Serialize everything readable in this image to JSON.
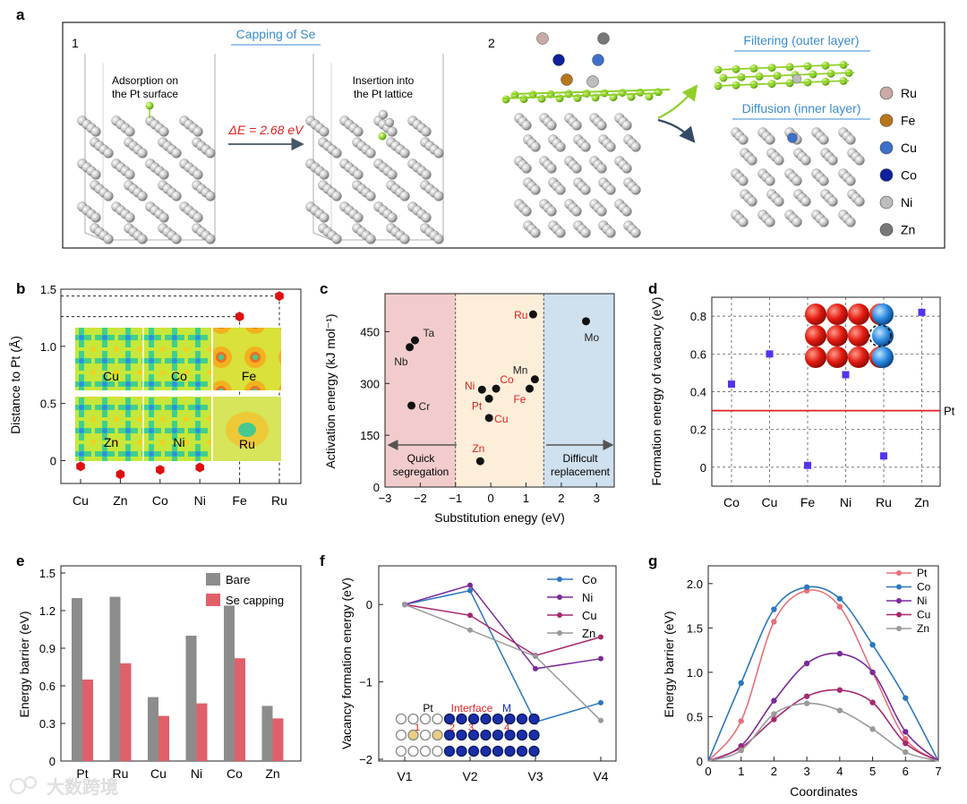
{
  "panel_letters": {
    "a": "a",
    "b": "b",
    "c": "c",
    "d": "d",
    "e": "e",
    "f": "f",
    "g": "g"
  },
  "panel_a": {
    "sub1": "1",
    "sub2": "2",
    "capping_title": "Capping of Se",
    "adsorption_line1": "Adsorption on",
    "adsorption_line2": "the Pt surface",
    "insertion_line1": "Insertion into",
    "insertion_line2": "the Pt lattice",
    "delta_e": "ΔE = 2.68 eV",
    "filtering": "Filtering (outer layer)",
    "diffusion": "Diffusion (inner layer)",
    "legend": [
      {
        "label": "Ru",
        "color": "#c9aaa6"
      },
      {
        "label": "Fe",
        "color": "#b8761a"
      },
      {
        "label": "Cu",
        "color": "#3f6fc8"
      },
      {
        "label": "Co",
        "color": "#10209a"
      },
      {
        "label": "Ni",
        "color": "#bdbdbd"
      },
      {
        "label": "Zn",
        "color": "#777777"
      }
    ]
  },
  "colors": {
    "accent_blue": "#3a8bd0",
    "accent_red": "#e02020",
    "bare_gray": "#8c8c8c",
    "se_capping": "#e0606a"
  },
  "chart_data": [
    {
      "panel": "b",
      "type": "scatter",
      "ylabel": "Distance to Pt (Å)",
      "categories": [
        "Cu",
        "Zn",
        "Co",
        "Ni",
        "Fe",
        "Ru"
      ],
      "yticks": [
        "0",
        "0.5",
        "1.0",
        "1.5"
      ],
      "ylim": [
        -0.2,
        1.5
      ],
      "values": [
        -0.05,
        -0.12,
        -0.08,
        -0.06,
        1.26,
        1.44
      ],
      "map_labels": [
        "Cu",
        "Co",
        "Fe",
        "Zn",
        "Ni",
        "Ru"
      ]
    },
    {
      "panel": "c",
      "type": "scatter",
      "xlabel": "Substitution enegy (eV)",
      "ylabel": "Activation energy (kJ mol⁻¹)",
      "xlim": [
        -3,
        3.5
      ],
      "ylim": [
        0,
        560
      ],
      "xticks": [
        "−3",
        "−2",
        "−1",
        "0",
        "1",
        "2",
        "3"
      ],
      "yticks": [
        "0",
        "150",
        "300",
        "450"
      ],
      "regions": [
        {
          "label_line1": "Quick",
          "label_line2": "segregation",
          "x0": -3,
          "x1": -1,
          "color": "#f2cccc"
        },
        {
          "label_line1": "",
          "label_line2": "",
          "x0": -1,
          "x1": 1.5,
          "color": "#fdeeda"
        },
        {
          "label_line1": "Difficult",
          "label_line2": "replacement",
          "x0": 1.5,
          "x1": 3.5,
          "color": "#cfe0ee"
        }
      ],
      "points": [
        {
          "label": "Ta",
          "x": -2.15,
          "y": 425,
          "color": "#222222"
        },
        {
          "label": "Nb",
          "x": -2.3,
          "y": 405,
          "color": "#222222"
        },
        {
          "label": "Cr",
          "x": -2.25,
          "y": 236,
          "color": "#222222"
        },
        {
          "label": "Ru",
          "x": 1.2,
          "y": 500,
          "color": "#e02020"
        },
        {
          "label": "Mo",
          "x": 2.7,
          "y": 480,
          "color": "#222222"
        },
        {
          "label": "Mn",
          "x": 1.25,
          "y": 312,
          "color": "#222222"
        },
        {
          "label": "Fe",
          "x": 1.1,
          "y": 285,
          "color": "#e02020"
        },
        {
          "label": "Co",
          "x": 0.15,
          "y": 285,
          "color": "#e02020"
        },
        {
          "label": "Ni",
          "x": -0.25,
          "y": 282,
          "color": "#e02020"
        },
        {
          "label": "Pt",
          "x": -0.05,
          "y": 256,
          "color": "#e02020"
        },
        {
          "label": "Cu",
          "x": -0.05,
          "y": 200,
          "color": "#e02020"
        },
        {
          "label": "Zn",
          "x": -0.3,
          "y": 75,
          "color": "#e02020"
        }
      ]
    },
    {
      "panel": "d",
      "type": "scatter",
      "ylabel": "Formation energy of vacancy (eV)",
      "categories": [
        "Co",
        "Cu",
        "Fe",
        "Ni",
        "Ru",
        "Zn"
      ],
      "yticks": [
        "0",
        "0.2",
        "0.4",
        "0.6",
        "0.8"
      ],
      "ylim": [
        -0.1,
        0.9
      ],
      "values": [
        0.44,
        0.6,
        0.01,
        0.49,
        0.06,
        0.82
      ],
      "x_offsets": [
        0,
        0,
        0,
        0,
        0,
        0
      ],
      "reference": {
        "label": "Pt",
        "y": 0.3,
        "color": "#e02020"
      },
      "marker_color": "#5533ee"
    },
    {
      "panel": "e",
      "type": "bar",
      "ylabel": "Energy barrier (eV)",
      "categories": [
        "Pt",
        "Ru",
        "Cu",
        "Ni",
        "Co",
        "Zn"
      ],
      "yticks": [
        "0",
        "0.3",
        "0.6",
        "0.9",
        "1.2",
        "1.5"
      ],
      "ylim": [
        0,
        1.5
      ],
      "series": [
        {
          "name": "Bare",
          "color": "#8c8c8c",
          "values": [
            1.3,
            1.31,
            0.51,
            1.0,
            1.24,
            0.44
          ]
        },
        {
          "name": "Se capping",
          "color": "#e0606a",
          "values": [
            0.65,
            0.78,
            0.36,
            0.46,
            0.82,
            0.34
          ]
        }
      ]
    },
    {
      "panel": "f",
      "type": "line",
      "ylabel": "Vacancy formation energy (eV)",
      "categories": [
        "V1",
        "V2",
        "V3",
        "V4"
      ],
      "yticks": [
        "−2",
        "−1",
        "0"
      ],
      "ylim": [
        -2,
        0.5
      ],
      "series": [
        {
          "name": "Co",
          "color": "#2a78c0",
          "values": [
            0,
            0.18,
            -1.52,
            -1.27
          ]
        },
        {
          "name": "Ni",
          "color": "#7a2a9a",
          "values": [
            0,
            0.25,
            -0.83,
            -0.7
          ]
        },
        {
          "name": "Cu",
          "color": "#a8286e",
          "values": [
            0,
            -0.14,
            -0.66,
            -0.42
          ]
        },
        {
          "name": "Zn",
          "color": "#9a9a9a",
          "values": [
            0,
            -0.33,
            -0.67,
            -1.5
          ]
        }
      ],
      "inset": {
        "pt": "Pt",
        "interface": "Interface",
        "m": "M",
        "nums": [
          "1",
          "2",
          "3",
          "4"
        ]
      }
    },
    {
      "panel": "g",
      "type": "line",
      "xlabel": "Coordinates",
      "ylabel": "Energy barrier (eV)",
      "x": [
        0,
        1,
        2,
        3,
        4,
        5,
        6,
        7
      ],
      "xticks": [
        "0",
        "1",
        "2",
        "3",
        "4",
        "5",
        "6",
        "7"
      ],
      "yticks": [
        "0",
        "0.5",
        "1.0",
        "1.5",
        "2.0"
      ],
      "xlim": [
        0,
        7
      ],
      "ylim": [
        0,
        2.2
      ],
      "series": [
        {
          "name": "Pt",
          "color": "#e8707a",
          "values": [
            0,
            0.45,
            1.57,
            1.92,
            1.74,
            1.0,
            0.25,
            0
          ]
        },
        {
          "name": "Co",
          "color": "#2a78c0",
          "values": [
            0,
            0.88,
            1.71,
            1.96,
            1.83,
            1.31,
            0.71,
            0
          ]
        },
        {
          "name": "Ni",
          "color": "#7a2a9a",
          "values": [
            0,
            0.17,
            0.68,
            1.1,
            1.21,
            1.0,
            0.33,
            0
          ]
        },
        {
          "name": "Cu",
          "color": "#a8286e",
          "values": [
            0,
            0.15,
            0.47,
            0.73,
            0.8,
            0.66,
            0.2,
            0
          ]
        },
        {
          "name": "Zn",
          "color": "#9a9a9a",
          "values": [
            0,
            0.12,
            0.53,
            0.65,
            0.57,
            0.36,
            0.1,
            0
          ]
        }
      ]
    }
  ],
  "watermark": "大数跨境"
}
